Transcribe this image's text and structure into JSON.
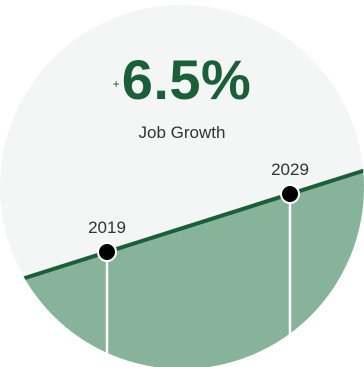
{
  "colors": {
    "background_circle": "#f3f6f4",
    "area_fill": "#86b39a",
    "line": "#1b5e3a",
    "marker": "#000000",
    "drop_line": "#ffffff",
    "headline": "#1b5e3a"
  },
  "headline": {
    "prefix": "+",
    "value": "6.5%",
    "label": "Job Growth"
  },
  "chart_data": {
    "type": "area",
    "title": "",
    "xlabel": "",
    "ylabel": "",
    "x": [
      2019,
      2029
    ],
    "series": [
      {
        "values": [
          100,
          106.5
        ]
      }
    ],
    "growth_percent": 6.5,
    "points": [
      {
        "label": "2019",
        "x": 2019,
        "value": 100
      },
      {
        "label": "2029",
        "x": 2029,
        "value": 106.5
      }
    ],
    "grid": false,
    "legend": "none"
  }
}
